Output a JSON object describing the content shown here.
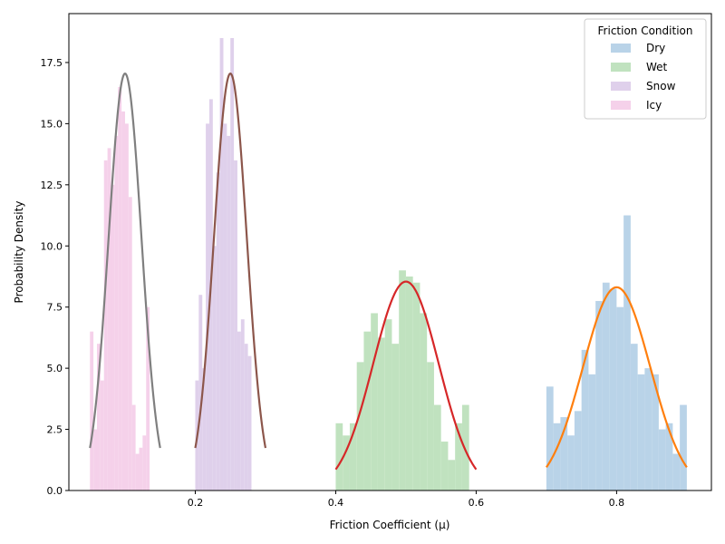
{
  "chart_data": {
    "type": "bar",
    "subtype": "histogram-with-density-curves",
    "title": "",
    "xlabel": "Friction Coefficient (μ)",
    "ylabel": "Probability Density",
    "xlim": [
      0.02,
      0.935
    ],
    "ylim": [
      0,
      19.5
    ],
    "x_ticks": [
      0.2,
      0.4,
      0.6,
      0.8
    ],
    "y_ticks": [
      0.0,
      2.5,
      5.0,
      7.5,
      10.0,
      12.5,
      15.0,
      17.5
    ],
    "x_tick_labels": [
      "0.2",
      "0.4",
      "0.6",
      "0.8"
    ],
    "y_tick_labels": [
      "0.0",
      "2.5",
      "5.0",
      "7.5",
      "10.0",
      "12.5",
      "15.0",
      "17.5"
    ],
    "grid": false,
    "legend": {
      "title": "Friction Condition",
      "placement": "top-right",
      "entries": [
        "Dry",
        "Wet",
        "Snow",
        "Icy"
      ]
    },
    "series": [
      {
        "name": "Dry",
        "hist_color": "#b9d3e8",
        "curve_color": "#ff7f0e",
        "mean": 0.8,
        "std": 0.048,
        "curve_range": [
          0.7,
          0.9
        ],
        "bin_start": 0.7,
        "bin_width": 0.01,
        "values": [
          4.25,
          2.75,
          3.0,
          2.25,
          3.25,
          5.75,
          4.75,
          7.75,
          8.5,
          8.25,
          7.5,
          11.25,
          6.0,
          4.75,
          5.0,
          4.75,
          2.5,
          2.75,
          1.5,
          3.5
        ]
      },
      {
        "name": "Wet",
        "hist_color": "#c0e2bf",
        "curve_color": "#d62728",
        "mean": 0.5,
        "std": 0.0467,
        "curve_range": [
          0.4,
          0.6
        ],
        "bin_start": 0.4,
        "bin_width": 0.01,
        "values": [
          2.75,
          2.25,
          2.75,
          5.25,
          6.5,
          7.25,
          6.25,
          7.0,
          6.0,
          9.0,
          8.75,
          8.5,
          7.25,
          5.25,
          3.5,
          2.0,
          1.25,
          2.75,
          3.5
        ]
      },
      {
        "name": "Snow",
        "hist_color": "#dfd0eb",
        "curve_color": "#8c564b",
        "mean": 0.25,
        "std": 0.0234,
        "curve_range": [
          0.2,
          0.3
        ],
        "bin_start": 0.2,
        "bin_width": 0.005,
        "values": [
          4.5,
          8.0,
          5.0,
          15.0,
          16.0,
          10.0,
          13.0,
          18.5,
          15.0,
          14.5,
          18.5,
          13.5,
          6.5,
          7.0,
          6.0,
          5.5
        ]
      },
      {
        "name": "Icy",
        "hist_color": "#f5d1ea",
        "curve_color": "#7f7f7f",
        "mean": 0.1,
        "std": 0.0234,
        "curve_range": [
          0.05,
          0.15
        ],
        "bin_start": 0.05,
        "bin_width": 0.005,
        "values": [
          6.5,
          2.5,
          6.0,
          4.5,
          13.5,
          14.0,
          12.5,
          14.5,
          16.5,
          15.5,
          15.0,
          12.0,
          3.5,
          1.5,
          1.75,
          2.25,
          7.5
        ]
      }
    ]
  }
}
